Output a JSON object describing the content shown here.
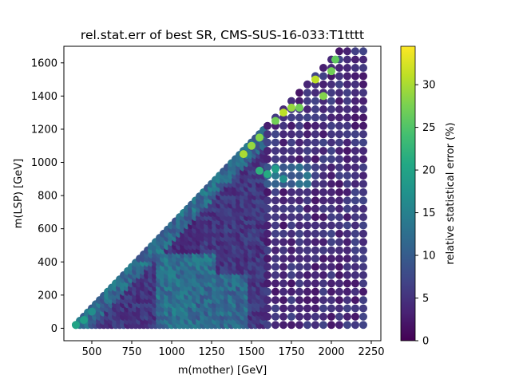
{
  "chart_data": {
    "type": "scatter",
    "title": "rel.stat.err of best SR, CMS-SUS-16-033:T1tttt",
    "xlabel": "m(mother) [GeV]",
    "ylabel": "m(LSP) [GeV]",
    "xlim": [
      325,
      2310
    ],
    "ylim": [
      -75,
      1700
    ],
    "xticks": [
      "500",
      "750",
      "1000",
      "1250",
      "1500",
      "1750",
      "2000",
      "2250"
    ],
    "yticks": [
      "0",
      "200",
      "400",
      "600",
      "800",
      "1000",
      "1200",
      "1400",
      "1600"
    ],
    "colorbar": {
      "label": "relative statistical error (%)",
      "range": [
        0,
        34.5
      ],
      "ticks": [
        "0",
        "5",
        "10",
        "15",
        "20",
        "25",
        "30"
      ],
      "colormap": "viridis"
    },
    "grid": false,
    "marker": "circle",
    "diagonal_edge": {
      "x": [
        400,
        2025
      ],
      "y_offset_of_x": 375
    },
    "dense_grid": {
      "x_step": 25,
      "y_step": 25,
      "x_range": [
        400,
        1600
      ]
    },
    "sparse_grid": {
      "x_step": 50,
      "y_step": 50,
      "x_range": [
        1600,
        2225
      ]
    },
    "highlight_points": [
      {
        "x": 400,
        "y": 20,
        "err": 20
      },
      {
        "x": 450,
        "y": 50,
        "err": 19
      },
      {
        "x": 500,
        "y": 100,
        "err": 17
      },
      {
        "x": 1450,
        "y": 1050,
        "err": 30
      },
      {
        "x": 1500,
        "y": 1100,
        "err": 29
      },
      {
        "x": 1550,
        "y": 1150,
        "err": 28
      },
      {
        "x": 1650,
        "y": 1250,
        "err": 27
      },
      {
        "x": 1700,
        "y": 1300,
        "err": 31
      },
      {
        "x": 1750,
        "y": 1330,
        "err": 29
      },
      {
        "x": 1800,
        "y": 1330,
        "err": 27
      },
      {
        "x": 1900,
        "y": 1500,
        "err": 31
      },
      {
        "x": 1950,
        "y": 1400,
        "err": 28
      },
      {
        "x": 2000,
        "y": 1550,
        "err": 27
      },
      {
        "x": 2025,
        "y": 1620,
        "err": 26
      },
      {
        "x": 1550,
        "y": 950,
        "err": 22
      },
      {
        "x": 1600,
        "y": 930,
        "err": 21
      },
      {
        "x": 1650,
        "y": 960,
        "err": 19
      },
      {
        "x": 1700,
        "y": 900,
        "err": 17
      }
    ]
  }
}
